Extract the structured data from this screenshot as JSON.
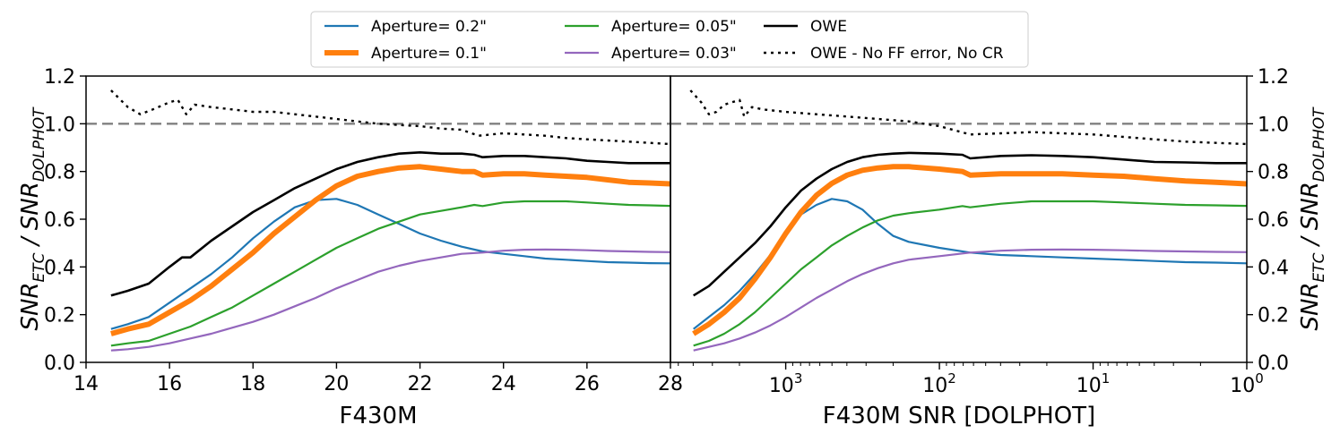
{
  "legend": {
    "items": [
      {
        "label": "Aperture= 0.2\"",
        "color": "#1f77b4",
        "style": "solid-thin"
      },
      {
        "label": "Aperture= 0.1\"",
        "color": "#ff7f0e",
        "style": "solid-thick"
      },
      {
        "label": "Aperture= 0.05\"",
        "color": "#2ca02c",
        "style": "solid-thin"
      },
      {
        "label": "Aperture= 0.03\"",
        "color": "#9467bd",
        "style": "solid-thin"
      },
      {
        "label": "OWE",
        "color": "#000000",
        "style": "solid"
      },
      {
        "label": "OWE - No FF error, No CR",
        "color": "#000000",
        "style": "dotted"
      }
    ]
  },
  "chart_data": [
    {
      "type": "line",
      "xlabel": "F430M",
      "ylabel_left": "SNR_ETC / SNR_DOLPHOT",
      "xlim": [
        14,
        28
      ],
      "ylim": [
        0,
        1.2
      ],
      "xticks": [
        14,
        16,
        18,
        20,
        22,
        24,
        26,
        28
      ],
      "xtick_labels": [
        "14",
        "16",
        "18",
        "20",
        "22",
        "24",
        "26",
        "28"
      ],
      "yticks": [
        0.0,
        0.2,
        0.4,
        0.6,
        0.8,
        1.0,
        1.2
      ],
      "ytick_labels": [
        "0.0",
        "0.2",
        "0.4",
        "0.6",
        "0.8",
        "1.0",
        "1.2"
      ],
      "reference_line": 1.0,
      "series": [
        {
          "name": "Aperture= 0.2\"",
          "x": [
            14.6,
            15.0,
            15.5,
            16.0,
            16.5,
            17.0,
            17.5,
            18.0,
            18.5,
            19.0,
            19.5,
            20.0,
            20.5,
            21.0,
            21.5,
            22.0,
            22.5,
            23.0,
            23.5,
            24.0,
            24.5,
            25.0,
            25.5,
            26.0,
            26.5,
            27.0,
            27.5,
            28.0
          ],
          "y": [
            0.14,
            0.16,
            0.19,
            0.25,
            0.31,
            0.37,
            0.44,
            0.52,
            0.59,
            0.65,
            0.68,
            0.685,
            0.66,
            0.62,
            0.58,
            0.54,
            0.51,
            0.485,
            0.465,
            0.455,
            0.445,
            0.435,
            0.43,
            0.425,
            0.42,
            0.418,
            0.416,
            0.415
          ]
        },
        {
          "name": "Aperture= 0.1\"",
          "x": [
            14.6,
            15.0,
            15.5,
            16.0,
            16.5,
            17.0,
            17.5,
            18.0,
            18.5,
            19.0,
            19.5,
            20.0,
            20.5,
            21.0,
            21.5,
            22.0,
            22.5,
            23.0,
            23.3,
            23.5,
            24.0,
            24.5,
            25.0,
            25.5,
            26.0,
            26.5,
            27.0,
            27.5,
            28.0
          ],
          "y": [
            0.12,
            0.14,
            0.16,
            0.21,
            0.26,
            0.32,
            0.39,
            0.46,
            0.54,
            0.61,
            0.68,
            0.74,
            0.78,
            0.8,
            0.815,
            0.82,
            0.81,
            0.8,
            0.8,
            0.785,
            0.79,
            0.79,
            0.785,
            0.78,
            0.775,
            0.765,
            0.755,
            0.752,
            0.748
          ]
        },
        {
          "name": "Aperture= 0.05\"",
          "x": [
            14.6,
            15.0,
            15.5,
            16.0,
            16.5,
            17.0,
            17.5,
            18.0,
            18.5,
            19.0,
            19.5,
            20.0,
            20.5,
            21.0,
            21.5,
            22.0,
            22.5,
            23.0,
            23.3,
            23.5,
            24.0,
            24.5,
            25.0,
            25.5,
            26.0,
            26.5,
            27.0,
            27.5,
            28.0
          ],
          "y": [
            0.07,
            0.08,
            0.09,
            0.12,
            0.15,
            0.19,
            0.23,
            0.28,
            0.33,
            0.38,
            0.43,
            0.48,
            0.52,
            0.56,
            0.59,
            0.62,
            0.635,
            0.65,
            0.66,
            0.655,
            0.67,
            0.675,
            0.675,
            0.675,
            0.67,
            0.665,
            0.66,
            0.658,
            0.656
          ]
        },
        {
          "name": "Aperture= 0.03\"",
          "x": [
            14.6,
            15.0,
            15.5,
            16.0,
            16.5,
            17.0,
            17.5,
            18.0,
            18.5,
            19.0,
            19.5,
            20.0,
            20.5,
            21.0,
            21.5,
            22.0,
            22.5,
            23.0,
            23.5,
            24.0,
            24.5,
            25.0,
            25.5,
            26.0,
            26.5,
            27.0,
            27.5,
            28.0
          ],
          "y": [
            0.05,
            0.055,
            0.065,
            0.08,
            0.1,
            0.12,
            0.145,
            0.17,
            0.2,
            0.235,
            0.27,
            0.31,
            0.345,
            0.38,
            0.405,
            0.425,
            0.44,
            0.455,
            0.46,
            0.468,
            0.472,
            0.473,
            0.472,
            0.47,
            0.467,
            0.465,
            0.463,
            0.462
          ]
        },
        {
          "name": "OWE",
          "x": [
            14.6,
            15.0,
            15.5,
            16.0,
            16.3,
            16.5,
            17.0,
            17.5,
            18.0,
            18.5,
            19.0,
            19.5,
            20.0,
            20.5,
            21.0,
            21.5,
            22.0,
            22.5,
            23.0,
            23.3,
            23.5,
            24.0,
            24.5,
            25.0,
            25.5,
            26.0,
            26.5,
            27.0,
            27.5,
            28.0
          ],
          "y": [
            0.28,
            0.3,
            0.33,
            0.4,
            0.44,
            0.44,
            0.51,
            0.57,
            0.63,
            0.68,
            0.73,
            0.77,
            0.81,
            0.84,
            0.86,
            0.875,
            0.88,
            0.875,
            0.875,
            0.87,
            0.86,
            0.865,
            0.865,
            0.86,
            0.855,
            0.845,
            0.84,
            0.835,
            0.835,
            0.835
          ]
        },
        {
          "name": "OWE - No FF error, No CR",
          "x": [
            14.6,
            15.0,
            15.3,
            15.6,
            16.0,
            16.2,
            16.4,
            16.6,
            17.0,
            17.5,
            18.0,
            18.5,
            19.0,
            19.5,
            20.0,
            20.5,
            21.0,
            21.5,
            22.0,
            22.5,
            23.0,
            23.4,
            24.0,
            24.5,
            25.0,
            25.5,
            26.0,
            26.5,
            27.0,
            27.5,
            28.0
          ],
          "y": [
            1.14,
            1.07,
            1.04,
            1.06,
            1.09,
            1.1,
            1.04,
            1.08,
            1.07,
            1.06,
            1.05,
            1.05,
            1.04,
            1.03,
            1.02,
            1.01,
            1.0,
            0.995,
            0.99,
            0.98,
            0.975,
            0.95,
            0.96,
            0.955,
            0.95,
            0.94,
            0.935,
            0.93,
            0.925,
            0.92,
            0.915
          ]
        }
      ]
    },
    {
      "type": "line",
      "xlabel": "F430M SNR [DOLPHOT]",
      "ylabel_right": "SNR_ETC / SNR_DOLPHOT",
      "xscale": "log-inverted",
      "xlim_log10": [
        3.75,
        0
      ],
      "ylim": [
        0,
        1.2
      ],
      "xticks_log10": [
        3,
        2,
        1,
        0
      ],
      "xtick_labels": [
        {
          "base": "10",
          "exp": "3"
        },
        {
          "base": "10",
          "exp": "2"
        },
        {
          "base": "10",
          "exp": "1"
        },
        {
          "base": "10",
          "exp": "0"
        }
      ],
      "yticks": [
        0.0,
        0.2,
        0.4,
        0.6,
        0.8,
        1.0,
        1.2
      ],
      "ytick_labels": [
        "0.0",
        "0.2",
        "0.4",
        "0.6",
        "0.8",
        "1.0",
        "1.2"
      ],
      "reference_line": 1.0,
      "series": [
        {
          "name": "Aperture= 0.2\"",
          "log10_snr": [
            3.6,
            3.5,
            3.4,
            3.3,
            3.2,
            3.1,
            3.0,
            2.9,
            2.8,
            2.7,
            2.6,
            2.5,
            2.4,
            2.3,
            2.2,
            2.0,
            1.8,
            1.6,
            1.4,
            1.2,
            1.0,
            0.8,
            0.6,
            0.4,
            0.2,
            0.0
          ],
          "y": [
            0.14,
            0.19,
            0.24,
            0.3,
            0.37,
            0.45,
            0.54,
            0.62,
            0.66,
            0.685,
            0.675,
            0.64,
            0.58,
            0.53,
            0.505,
            0.48,
            0.46,
            0.45,
            0.445,
            0.44,
            0.435,
            0.43,
            0.425,
            0.42,
            0.418,
            0.415
          ]
        },
        {
          "name": "Aperture= 0.1\"",
          "log10_snr": [
            3.6,
            3.5,
            3.4,
            3.3,
            3.2,
            3.1,
            3.0,
            2.9,
            2.8,
            2.7,
            2.6,
            2.5,
            2.4,
            2.3,
            2.2,
            2.0,
            1.85,
            1.8,
            1.6,
            1.4,
            1.2,
            1.0,
            0.8,
            0.6,
            0.4,
            0.2,
            0.0
          ],
          "y": [
            0.12,
            0.16,
            0.21,
            0.27,
            0.35,
            0.44,
            0.54,
            0.63,
            0.7,
            0.75,
            0.785,
            0.805,
            0.815,
            0.82,
            0.82,
            0.81,
            0.8,
            0.785,
            0.79,
            0.79,
            0.79,
            0.785,
            0.78,
            0.77,
            0.76,
            0.755,
            0.748
          ]
        },
        {
          "name": "Aperture= 0.05\"",
          "log10_snr": [
            3.6,
            3.5,
            3.4,
            3.3,
            3.2,
            3.1,
            3.0,
            2.9,
            2.8,
            2.7,
            2.6,
            2.5,
            2.4,
            2.3,
            2.2,
            2.0,
            1.85,
            1.8,
            1.6,
            1.4,
            1.2,
            1.0,
            0.8,
            0.6,
            0.4,
            0.2,
            0.0
          ],
          "y": [
            0.07,
            0.09,
            0.12,
            0.16,
            0.21,
            0.27,
            0.33,
            0.39,
            0.44,
            0.49,
            0.53,
            0.565,
            0.595,
            0.615,
            0.625,
            0.64,
            0.655,
            0.65,
            0.665,
            0.675,
            0.675,
            0.675,
            0.67,
            0.665,
            0.66,
            0.658,
            0.656
          ]
        },
        {
          "name": "Aperture= 0.03\"",
          "log10_snr": [
            3.6,
            3.5,
            3.4,
            3.3,
            3.2,
            3.1,
            3.0,
            2.9,
            2.8,
            2.7,
            2.6,
            2.5,
            2.4,
            2.3,
            2.2,
            2.0,
            1.8,
            1.6,
            1.4,
            1.2,
            1.0,
            0.8,
            0.6,
            0.4,
            0.2,
            0.0
          ],
          "y": [
            0.05,
            0.065,
            0.08,
            0.1,
            0.125,
            0.155,
            0.19,
            0.23,
            0.27,
            0.305,
            0.34,
            0.37,
            0.395,
            0.415,
            0.43,
            0.445,
            0.46,
            0.468,
            0.472,
            0.473,
            0.472,
            0.47,
            0.467,
            0.465,
            0.463,
            0.462
          ]
        },
        {
          "name": "OWE",
          "log10_snr": [
            3.6,
            3.5,
            3.4,
            3.3,
            3.2,
            3.1,
            3.0,
            2.9,
            2.8,
            2.7,
            2.6,
            2.5,
            2.4,
            2.3,
            2.2,
            2.0,
            1.85,
            1.8,
            1.6,
            1.4,
            1.2,
            1.0,
            0.8,
            0.6,
            0.4,
            0.2,
            0.0
          ],
          "y": [
            0.28,
            0.32,
            0.38,
            0.44,
            0.5,
            0.57,
            0.65,
            0.72,
            0.77,
            0.81,
            0.84,
            0.86,
            0.87,
            0.875,
            0.878,
            0.875,
            0.87,
            0.855,
            0.865,
            0.868,
            0.865,
            0.86,
            0.85,
            0.84,
            0.838,
            0.835,
            0.835
          ]
        },
        {
          "name": "OWE - No FF error, No CR",
          "log10_snr": [
            3.62,
            3.55,
            3.5,
            3.45,
            3.4,
            3.35,
            3.3,
            3.27,
            3.22,
            3.15,
            3.0,
            2.8,
            2.6,
            2.4,
            2.2,
            2.0,
            1.8,
            1.6,
            1.4,
            1.2,
            1.0,
            0.8,
            0.6,
            0.4,
            0.2,
            0.0
          ],
          "y": [
            1.14,
            1.09,
            1.04,
            1.05,
            1.08,
            1.09,
            1.1,
            1.03,
            1.07,
            1.06,
            1.05,
            1.04,
            1.03,
            1.02,
            1.01,
            0.99,
            0.955,
            0.96,
            0.965,
            0.96,
            0.955,
            0.945,
            0.935,
            0.925,
            0.92,
            0.915
          ]
        }
      ]
    }
  ]
}
